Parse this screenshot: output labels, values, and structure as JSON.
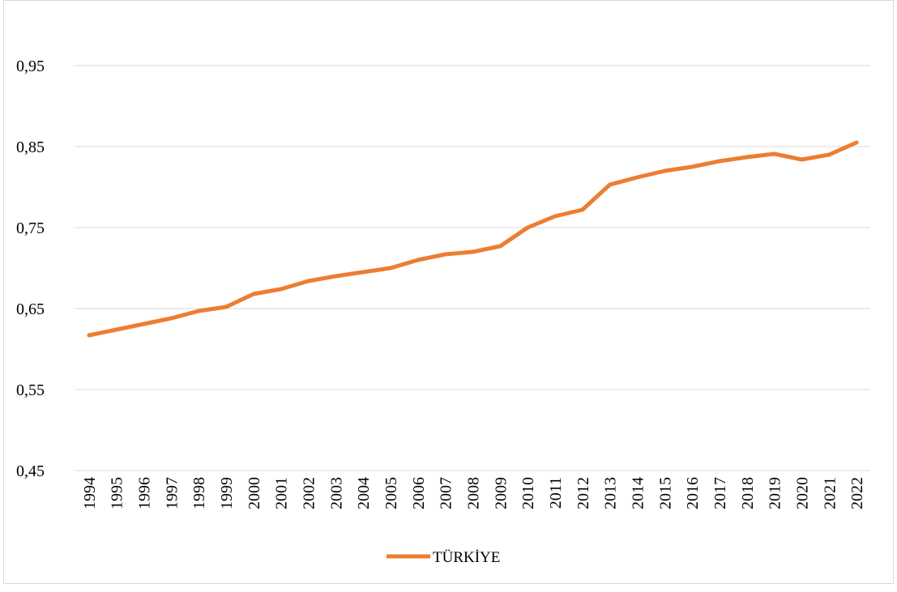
{
  "chart_data": {
    "type": "line",
    "x": [
      "1994",
      "1995",
      "1996",
      "1997",
      "1998",
      "1999",
      "2000",
      "2001",
      "2002",
      "2003",
      "2004",
      "2005",
      "2006",
      "2007",
      "2008",
      "2009",
      "2010",
      "2011",
      "2012",
      "2013",
      "2014",
      "2015",
      "2016",
      "2017",
      "2018",
      "2019",
      "2020",
      "2021",
      "2022"
    ],
    "series": [
      {
        "name": "TÜRKİYE",
        "color": "#ed7d31",
        "values": [
          0.617,
          0.624,
          0.631,
          0.638,
          0.647,
          0.652,
          0.668,
          0.674,
          0.684,
          0.69,
          0.695,
          0.7,
          0.71,
          0.717,
          0.72,
          0.727,
          0.75,
          0.764,
          0.772,
          0.803,
          0.812,
          0.82,
          0.825,
          0.832,
          0.837,
          0.841,
          0.834,
          0.84,
          0.855
        ]
      }
    ],
    "ylim": [
      0.45,
      1.0
    ],
    "yticks": [
      {
        "value": 0.45,
        "label": "0,45"
      },
      {
        "value": 0.55,
        "label": "0,55"
      },
      {
        "value": 0.65,
        "label": "0,65"
      },
      {
        "value": 0.75,
        "label": "0,75"
      },
      {
        "value": 0.85,
        "label": "0,85"
      },
      {
        "value": 0.95,
        "label": "0,95"
      }
    ],
    "grid": true,
    "legend": "bottom"
  }
}
